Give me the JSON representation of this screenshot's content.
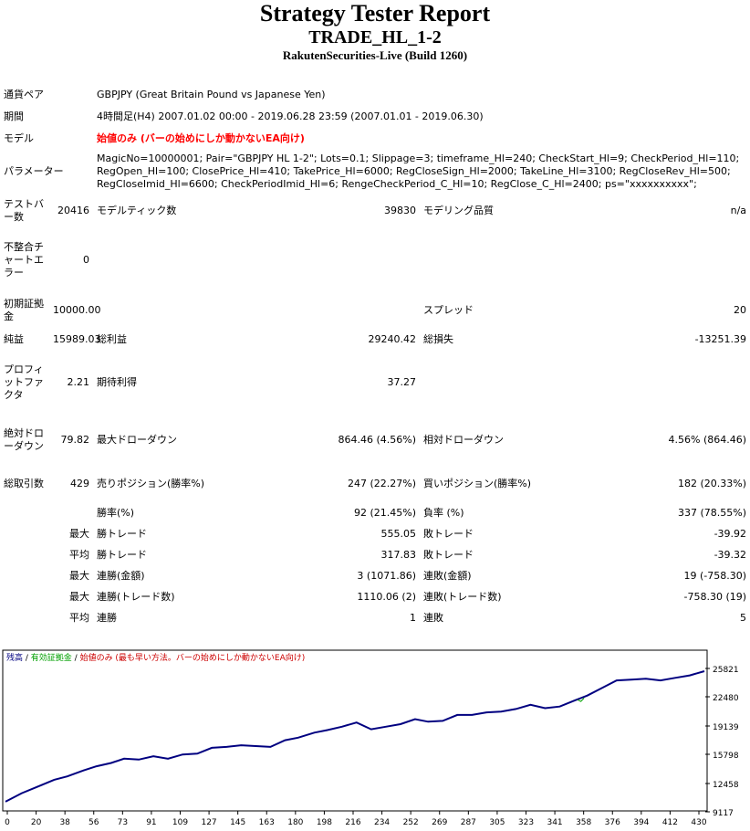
{
  "header": {
    "title": "Strategy Tester Report",
    "ea_name": "TRADE_HL_1-2",
    "server": "RakutenSecurities-Live (Build 1260)"
  },
  "info": {
    "pair_label": "通貨ペア",
    "pair_value": "GBPJPY (Great Britain Pound vs Japanese Yen)",
    "period_label": "期間",
    "period_value": "4時間足(H4) 2007.01.02 00:00 - 2019.06.28 23:59 (2007.01.01 - 2019.06.30)",
    "model_label": "モデル",
    "model_value": "始値のみ (バーの始めにしか動かないEA向け)",
    "params_label": "パラメーター",
    "params_value": "MagicNo=10000001; Pair=\"GBPJPY HL 1-2\"; Lots=0.1; Slippage=3; timeframe_Hl=240; CheckStart_Hl=9; CheckPeriod_Hl=110; RegOpen_Hl=100; ClosePrice_Hl=410; TakePrice_Hl=6000; RegCloseSign_Hl=2000; TakeLine_Hl=3100; RegCloseRev_Hl=500; RegCloseImid_Hl=6600; CheckPeriodImid_Hl=6; RengeCheckPeriod_C_Hl=10; RegClose_C_Hl=2400; ps=\"xxxxxxxxxx\";"
  },
  "stats": {
    "bars_label": "テストバー数",
    "bars_value": "20416",
    "ticks_label": "モデルティック数",
    "ticks_value": "39830",
    "quality_label": "モデリング品質",
    "quality_value": "n/a",
    "mismatch_label": "不整合チャートエラー",
    "mismatch_value": "0",
    "deposit_label": "初期証拠金",
    "deposit_value": "10000.00",
    "spread_label": "スプレッド",
    "spread_value": "20",
    "net_label": "純益",
    "net_value": "15989.03",
    "gross_profit_label": "総利益",
    "gross_profit_value": "29240.42",
    "gross_loss_label": "総損失",
    "gross_loss_value": "-13251.39",
    "pf_label": "プロフィットファクタ",
    "pf_value": "2.21",
    "expected_label": "期待利得",
    "expected_value": "37.27",
    "abs_dd_label": "絶対ドローダウン",
    "abs_dd_value": "79.82",
    "max_dd_label": "最大ドローダウン",
    "max_dd_value": "864.46 (4.56%)",
    "rel_dd_label": "相対ドローダウン",
    "rel_dd_value": "4.56% (864.46)",
    "trades_label": "総取引数",
    "trades_value": "429",
    "short_label": "売りポジション(勝率%)",
    "short_value": "247 (22.27%)",
    "long_label": "買いポジション(勝率%)",
    "long_value": "182 (20.33%)",
    "win_rate_label": "勝率(%)",
    "win_rate_value": "92 (21.45%)",
    "loss_rate_label": "負率 (%)",
    "loss_rate_value": "337 (78.55%)",
    "max_label": "最大",
    "avg_label": "平均",
    "win_trade_label": "勝トレード",
    "loss_trade_label": "敗トレード",
    "largest_win_value": "555.05",
    "largest_loss_value": "-39.92",
    "avg_win_value": "317.83",
    "avg_loss_value": "-39.32",
    "consec_wins_money_label": "連勝(金額)",
    "consec_wins_money_value": "3 (1071.86)",
    "consec_losses_money_label": "連敗(金額)",
    "consec_losses_money_value": "19 (-758.30)",
    "consec_wins_count_label": "連勝(トレード数)",
    "consec_wins_count_value": "1110.06 (2)",
    "consec_losses_count_label": "連敗(トレード数)",
    "consec_losses_count_value": "-758.30 (19)",
    "avg_consec_wins_label": "連勝",
    "avg_consec_wins_value": "1",
    "avg_consec_losses_label": "連敗",
    "avg_consec_losses_value": "5"
  },
  "chart_legend": {
    "balance": "残高",
    "sep1": " / ",
    "margin": "有効証拠金",
    "sep2": " / ",
    "model": "始値のみ (最も早い方法。バーの始めにしか動かないEA向け)"
  },
  "colors": {
    "balance_line": "#000080",
    "margin_line": "#00a000",
    "model_text": "#cc0000",
    "warning_text": "#ff0000"
  },
  "chart_data": {
    "type": "line",
    "title": "",
    "xlabel": "",
    "ylabel": "",
    "x_ticks": [
      "0",
      "20",
      "38",
      "56",
      "73",
      "91",
      "109",
      "127",
      "145",
      "163",
      "180",
      "198",
      "216",
      "234",
      "252",
      "269",
      "287",
      "305",
      "323",
      "341",
      "358",
      "376",
      "394",
      "412",
      "430"
    ],
    "y_ticks": [
      "25821",
      "22480",
      "19139",
      "15798",
      "12458",
      "9117"
    ],
    "xlim": [
      0,
      430
    ],
    "ylim": [
      9117,
      25821
    ],
    "series": [
      {
        "name": "残高",
        "x": [
          0,
          10,
          20,
          30,
          38,
          48,
          56,
          65,
          73,
          82,
          91,
          100,
          109,
          118,
          127,
          136,
          145,
          154,
          163,
          172,
          180,
          190,
          198,
          207,
          216,
          225,
          234,
          243,
          252,
          260,
          269,
          278,
          287,
          296,
          305,
          314,
          323,
          332,
          341,
          350,
          358,
          367,
          376,
          385,
          394,
          403,
          412,
          421,
          430
        ],
        "y": [
          10000,
          11000,
          11800,
          12600,
          13000,
          13700,
          14200,
          14600,
          15100,
          15000,
          15400,
          15100,
          15600,
          15700,
          16400,
          16500,
          16700,
          16600,
          16500,
          17300,
          17600,
          18200,
          18500,
          18900,
          19400,
          18600,
          18900,
          19200,
          19800,
          19500,
          19600,
          20300,
          20300,
          20600,
          20700,
          21000,
          21500,
          21100,
          21300,
          22000,
          22600,
          23500,
          24400,
          24500,
          24600,
          24400,
          24700,
          25000,
          25500
        ]
      },
      {
        "name": "有効証拠金",
        "x": [
          352,
          354,
          356
        ],
        "y": [
          22100,
          21900,
          22300
        ]
      }
    ]
  }
}
